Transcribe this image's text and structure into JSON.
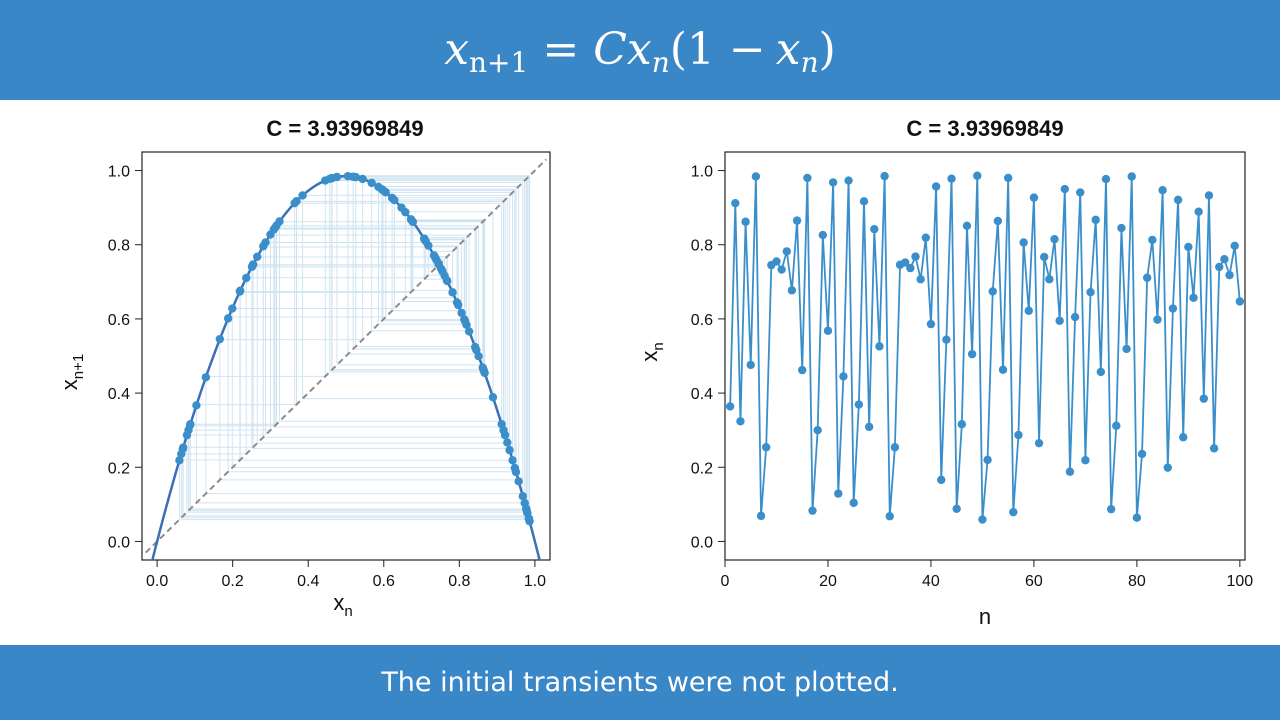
{
  "header": {
    "equation": {
      "lhs_var": "x",
      "lhs_sub": "n+1",
      "equals": "=",
      "coef": "C",
      "x1": "x",
      "sub1": "n",
      "open": "(1 −",
      "x2": "x",
      "sub2": "n",
      "close": ")"
    }
  },
  "footer": {
    "caption": "The initial transients were not plotted."
  },
  "colors": {
    "banner": "#3a87c8",
    "series": "#3a8fcb",
    "cobweb": "#cfe4f1",
    "curve": "#3d6fb8",
    "diagonal": "#8c8c8c"
  },
  "chart_data": [
    {
      "type": "scatter",
      "title": "C = 3.93969849",
      "xlabel": "x",
      "xlabel_sub": "n",
      "ylabel": "x",
      "ylabel_sub": "n+1",
      "xlim": [
        -0.04,
        1.04
      ],
      "ylim": [
        -0.05,
        1.05
      ],
      "xticks": [
        "0.0",
        "0.2",
        "0.4",
        "0.6",
        "0.8",
        "1.0"
      ],
      "yticks": [
        "0.0",
        "0.2",
        "0.4",
        "0.6",
        "0.8",
        "1.0"
      ],
      "C": 3.93969849,
      "curve": "y = C x (1 - x)",
      "diagonal": "y = x",
      "cobweb": true,
      "grid": false
    },
    {
      "type": "line",
      "title": "C = 3.93969849",
      "xlabel": "n",
      "ylabel": "x",
      "ylabel_sub": "n",
      "xlim": [
        0,
        101
      ],
      "ylim": [
        -0.05,
        1.05
      ],
      "xticks": [
        "0",
        "20",
        "40",
        "60",
        "80",
        "100"
      ],
      "yticks": [
        "0.0",
        "0.2",
        "0.4",
        "0.6",
        "0.8",
        "1.0"
      ],
      "markers": true,
      "grid": false,
      "series": [
        {
          "x": [
            1,
            2,
            3,
            4,
            5,
            6,
            7,
            8,
            9,
            10,
            11,
            12,
            13,
            14,
            15,
            16,
            17,
            18,
            19,
            20,
            21,
            22,
            23,
            24,
            25,
            26,
            27,
            28,
            29,
            30,
            31,
            32,
            33,
            34,
            35,
            36,
            37,
            38,
            39,
            40,
            41,
            42,
            43,
            44,
            45,
            46,
            47,
            48,
            49,
            50,
            51,
            52,
            53,
            54,
            55,
            56,
            57,
            58,
            59,
            60,
            61,
            62,
            63,
            64,
            65,
            66,
            67,
            68,
            69,
            70,
            71,
            72,
            73,
            74,
            75,
            76,
            77,
            78,
            79,
            80,
            81,
            82,
            83,
            84,
            85,
            86,
            87,
            88,
            89,
            90,
            91,
            92,
            93,
            94,
            95,
            96,
            97,
            98,
            99,
            100
          ],
          "values": [
            0.364,
            0.912,
            0.324,
            0.862,
            0.476,
            0.984,
            0.069,
            0.254,
            0.745,
            0.755,
            0.733,
            0.782,
            0.677,
            0.865,
            0.462,
            0.98,
            0.083,
            0.3,
            0.826,
            0.568,
            0.968,
            0.129,
            0.445,
            0.973,
            0.104,
            0.369,
            0.917,
            0.309,
            0.842,
            0.526,
            0.985,
            0.068,
            0.254,
            0.746,
            0.752,
            0.737,
            0.768,
            0.707,
            0.819,
            0.586,
            0.957,
            0.166,
            0.544,
            0.978,
            0.088,
            0.316,
            0.851,
            0.505,
            0.986,
            0.059,
            0.22,
            0.674,
            0.864,
            0.463,
            0.98,
            0.079,
            0.287,
            0.806,
            0.622,
            0.927,
            0.265,
            0.767,
            0.707,
            0.815,
            0.595,
            0.95,
            0.188,
            0.605,
            0.941,
            0.219,
            0.672,
            0.867,
            0.457,
            0.977,
            0.087,
            0.312,
            0.845,
            0.519,
            0.984,
            0.064,
            0.236,
            0.711,
            0.813,
            0.598,
            0.947,
            0.199,
            0.628,
            0.921,
            0.281,
            0.794,
            0.657,
            0.889,
            0.385,
            0.933,
            0.251,
            0.74,
            0.761,
            0.718,
            0.797,
            0.647
          ]
        }
      ]
    }
  ]
}
